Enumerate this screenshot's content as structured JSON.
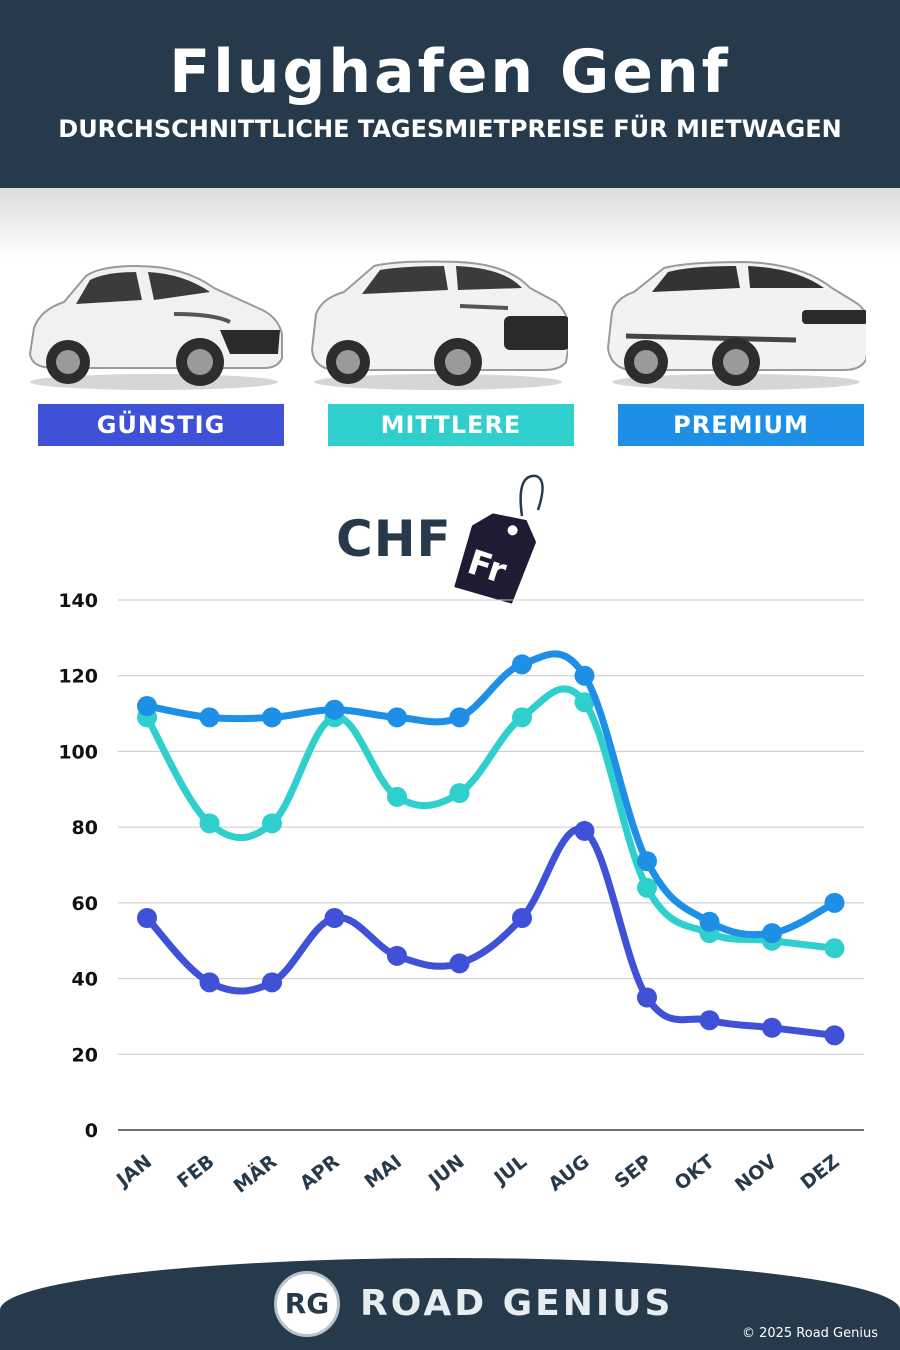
{
  "header": {
    "title": "Flughafen Genf",
    "subtitle": "DURCHSCHNITTLICHE TAGESMIETPREISE FÜR MIETWAGEN"
  },
  "categories": [
    {
      "label": "GÜNSTIG",
      "color": "#3f51d6"
    },
    {
      "label": "MITTLERE",
      "color": "#2ecfcc"
    },
    {
      "label": "PREMIUM",
      "color": "#1e8fe6"
    }
  ],
  "currency": {
    "code": "CHF",
    "tag_text": "Fr"
  },
  "chart_data": {
    "type": "line",
    "x": [
      "JAN",
      "FEB",
      "MÄR",
      "APR",
      "MAI",
      "JUN",
      "JUL",
      "AUG",
      "SEP",
      "OKT",
      "NOV",
      "DEZ"
    ],
    "ylim": [
      0,
      140
    ],
    "yticks": [
      0,
      20,
      40,
      60,
      80,
      100,
      120,
      140
    ],
    "grid": true,
    "series": [
      {
        "name": "GÜNSTIG",
        "color": "#3f51d6",
        "values": [
          56,
          39,
          39,
          56,
          46,
          44,
          56,
          79,
          35,
          29,
          27,
          25
        ]
      },
      {
        "name": "MITTLERE",
        "color": "#2ecfcc",
        "values": [
          109,
          81,
          81,
          109,
          88,
          89,
          109,
          113,
          64,
          52,
          50,
          48
        ]
      },
      {
        "name": "PREMIUM",
        "color": "#1e8fe6",
        "values": [
          112,
          109,
          109,
          111,
          109,
          109,
          123,
          120,
          71,
          55,
          52,
          60
        ]
      }
    ]
  },
  "footer": {
    "logo_letters": "RG",
    "brand": "ROAD GENIUS",
    "copyright": "© 2025 Road Genius"
  }
}
